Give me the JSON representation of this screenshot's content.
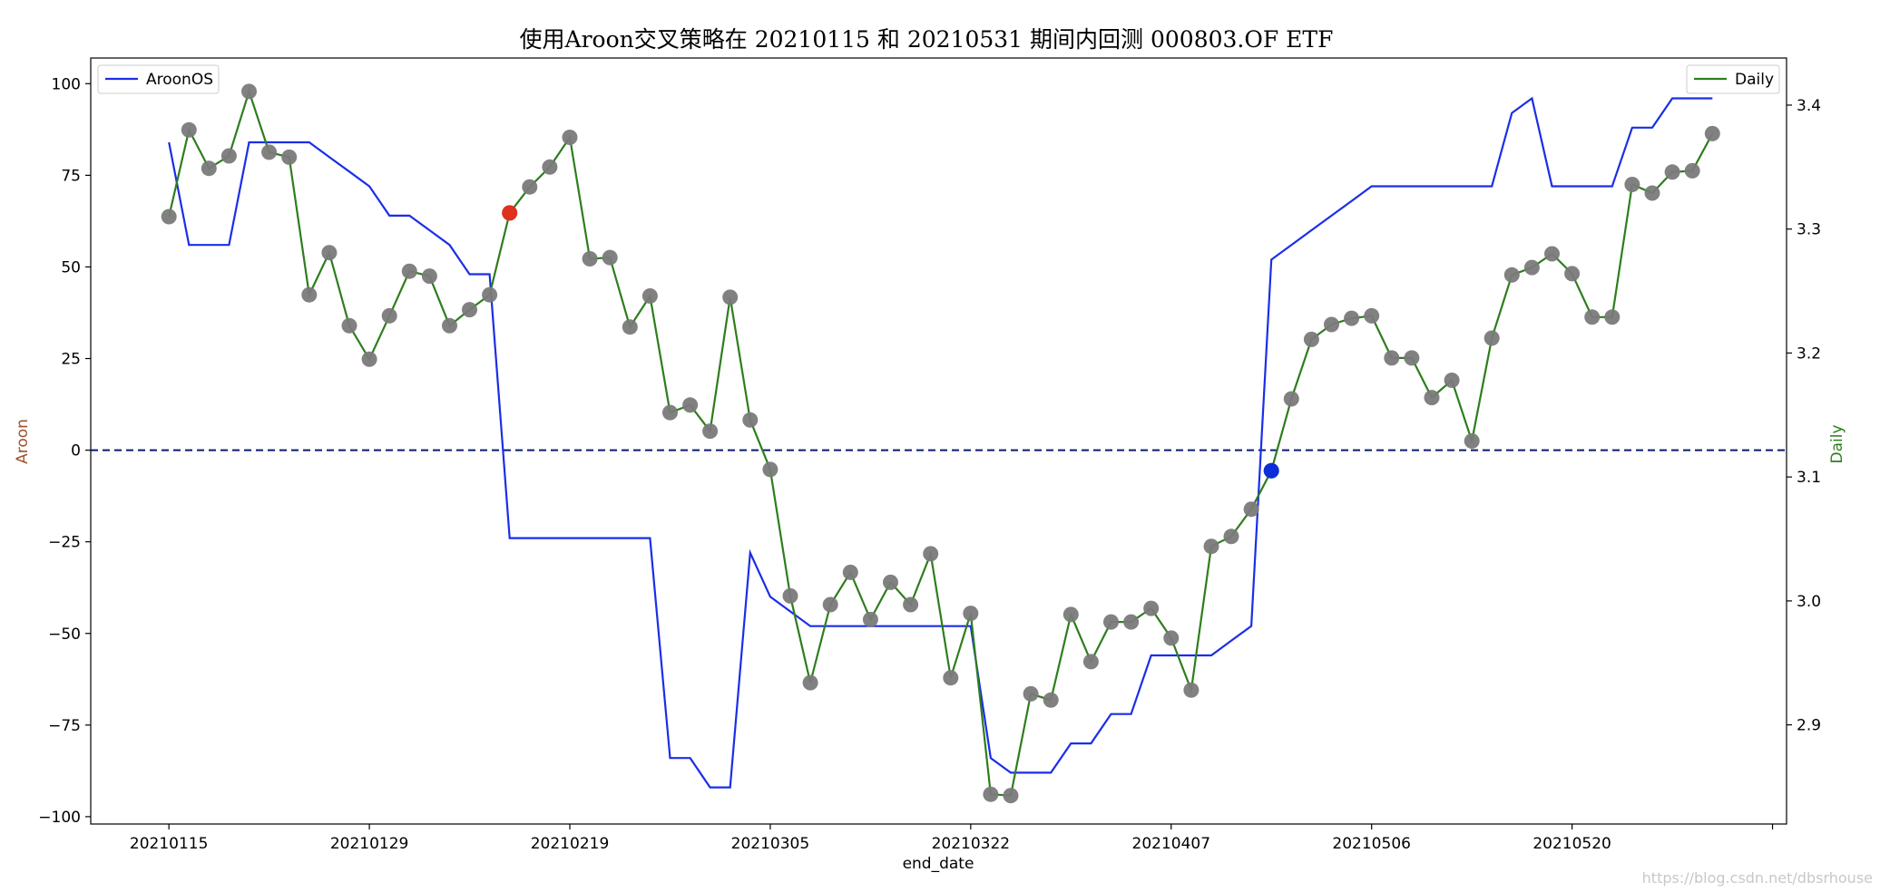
{
  "chart_data": {
    "type": "line",
    "title": "使用Aroon交叉策略在 20210115 和 20210531 期间内回测 000803.OF ETF",
    "xlabel": "end_date",
    "ylabel_left": "Aroon",
    "ylabel_right": "Daily",
    "ylabel_left_color": "#a0522d",
    "ylabel_right_color": "#2e7d1e",
    "ylim_left": [
      -102,
      107
    ],
    "ylim_right": [
      2.82,
      3.438
    ],
    "yticks_left": [
      100,
      75,
      50,
      25,
      0,
      -25,
      -50,
      -75,
      -100
    ],
    "yticks_left_labels": [
      "100",
      "75",
      "50",
      "25",
      "0",
      "−25",
      "−50",
      "−75",
      "−100"
    ],
    "yticks_right": [
      3.4,
      3.3,
      3.2,
      3.1,
      3.0,
      2.9
    ],
    "yticks_right_labels": [
      "3.4",
      "3.3",
      "3.2",
      "3.1",
      "3.0",
      "2.9"
    ],
    "xtick_labels": [
      "20210115",
      "20210129",
      "20210219",
      "20210305",
      "20210322",
      "20210407",
      "20210506",
      "20210520"
    ],
    "xtick_indices": [
      0,
      10,
      20,
      30,
      40,
      50,
      60,
      70
    ],
    "xlim_index": [
      -3.9,
      80.7
    ],
    "zero_line": 0,
    "grid": false,
    "legend_left": {
      "label": "AroonOS",
      "color": "#1a2ee8",
      "position": "top-left"
    },
    "legend_right": {
      "label": "Daily",
      "color": "#2e7d1e",
      "position": "top-right"
    },
    "colors": {
      "aroon": "#1a2ee8",
      "daily": "#2e7d1e",
      "marker": "#7a7a7a",
      "zero_line": "#0a1a6e",
      "buy": "#e0301e",
      "sell": "#0b2ed8"
    },
    "series": [
      {
        "name": "AroonOS",
        "axis": "left",
        "values": [
          84,
          56,
          56,
          56,
          84,
          84,
          84,
          84,
          80,
          76,
          72,
          64,
          64,
          60,
          56,
          48,
          48,
          -24,
          -24,
          -24,
          -24,
          -24,
          -24,
          -24,
          -24,
          -84,
          -84,
          -92,
          -92,
          -28,
          -40,
          -44,
          -48,
          -48,
          -48,
          -48,
          -48,
          -48,
          -48,
          -48,
          -48,
          -84,
          -88,
          -88,
          -88,
          -80,
          -80,
          -72,
          -72,
          -56,
          -56,
          -56,
          -56,
          -52,
          -48,
          52,
          56,
          60,
          64,
          68,
          72,
          72,
          72,
          72,
          72,
          72,
          72,
          92,
          96,
          72,
          72,
          72,
          72,
          88,
          88,
          96,
          96,
          96
        ]
      },
      {
        "name": "Daily",
        "axis": "right",
        "values": [
          3.31,
          3.38,
          3.349,
          3.359,
          3.411,
          3.362,
          3.358,
          3.247,
          3.281,
          3.222,
          3.195,
          3.23,
          3.266,
          3.262,
          3.222,
          3.235,
          3.247,
          3.313,
          3.334,
          3.35,
          3.374,
          3.276,
          3.277,
          3.221,
          3.246,
          3.152,
          3.158,
          3.137,
          3.245,
          3.146,
          3.106,
          3.004,
          2.934,
          2.997,
          3.023,
          2.985,
          3.015,
          2.997,
          3.038,
          2.938,
          2.99,
          2.844,
          2.843,
          2.925,
          2.92,
          2.989,
          2.951,
          2.983,
          2.983,
          2.994,
          2.97,
          2.928,
          3.044,
          3.052,
          3.074,
          3.105,
          3.163,
          3.211,
          3.223,
          3.228,
          3.23,
          3.196,
          3.196,
          3.164,
          3.178,
          3.129,
          3.212,
          3.263,
          3.269,
          3.28,
          3.264,
          3.229,
          3.229,
          3.336,
          3.329,
          3.346,
          3.347,
          3.377
        ]
      }
    ],
    "signals": [
      {
        "type": "buy",
        "index": 17,
        "value": 3.313
      },
      {
        "type": "sell",
        "index": 55,
        "value": 3.105
      }
    ]
  },
  "watermark": "https://blog.csdn.net/dbsrhouse"
}
